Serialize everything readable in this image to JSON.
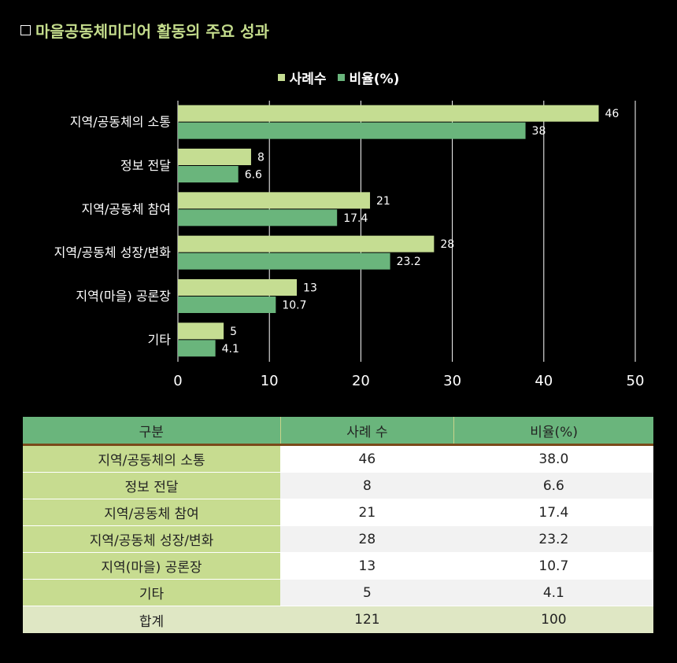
{
  "title": "마을공동체미디어 활동의 주요 성과",
  "legend": [
    "사례수",
    "비율(%)"
  ],
  "colors": {
    "series1": "#c5dd92",
    "series2": "#6ab57c",
    "accent": "#c4dc8c"
  },
  "chart_data": {
    "type": "bar",
    "orientation": "horizontal",
    "title": "마을공동체미디어 활동의 주요 성과",
    "categories": [
      "지역/공동체의 소통",
      "정보 전달",
      "지역/공동체 참여",
      "지역/공동체 성장/변화",
      "지역(마을) 공론장",
      "기타"
    ],
    "series": [
      {
        "name": "사례수",
        "values": [
          46,
          8,
          21,
          28,
          13,
          5
        ],
        "labels": [
          "46",
          "8",
          "21",
          "28",
          "13",
          "5"
        ]
      },
      {
        "name": "비율(%)",
        "values": [
          38,
          6.6,
          17.4,
          23.2,
          10.7,
          4.1
        ],
        "labels": [
          "38",
          "6.6",
          "17.4",
          "23.2",
          "10.7",
          "4.1"
        ]
      }
    ],
    "xlim": [
      0,
      50
    ],
    "xticks": [
      "0",
      "10",
      "20",
      "30",
      "40",
      "50"
    ],
    "grid": true,
    "legend_position": "top"
  },
  "table": {
    "headers": [
      "구분",
      "사례 수",
      "비율(%)"
    ],
    "rows": [
      [
        "지역/공동체의 소통",
        "46",
        "38.0"
      ],
      [
        "정보 전달",
        "8",
        "6.6"
      ],
      [
        "지역/공동체 참여",
        "21",
        "17.4"
      ],
      [
        "지역/공동체 성장/변화",
        "28",
        "23.2"
      ],
      [
        "지역(마을) 공론장",
        "13",
        "10.7"
      ],
      [
        "기타",
        "5",
        "4.1"
      ]
    ],
    "total": [
      "합계",
      "121",
      "100"
    ]
  }
}
